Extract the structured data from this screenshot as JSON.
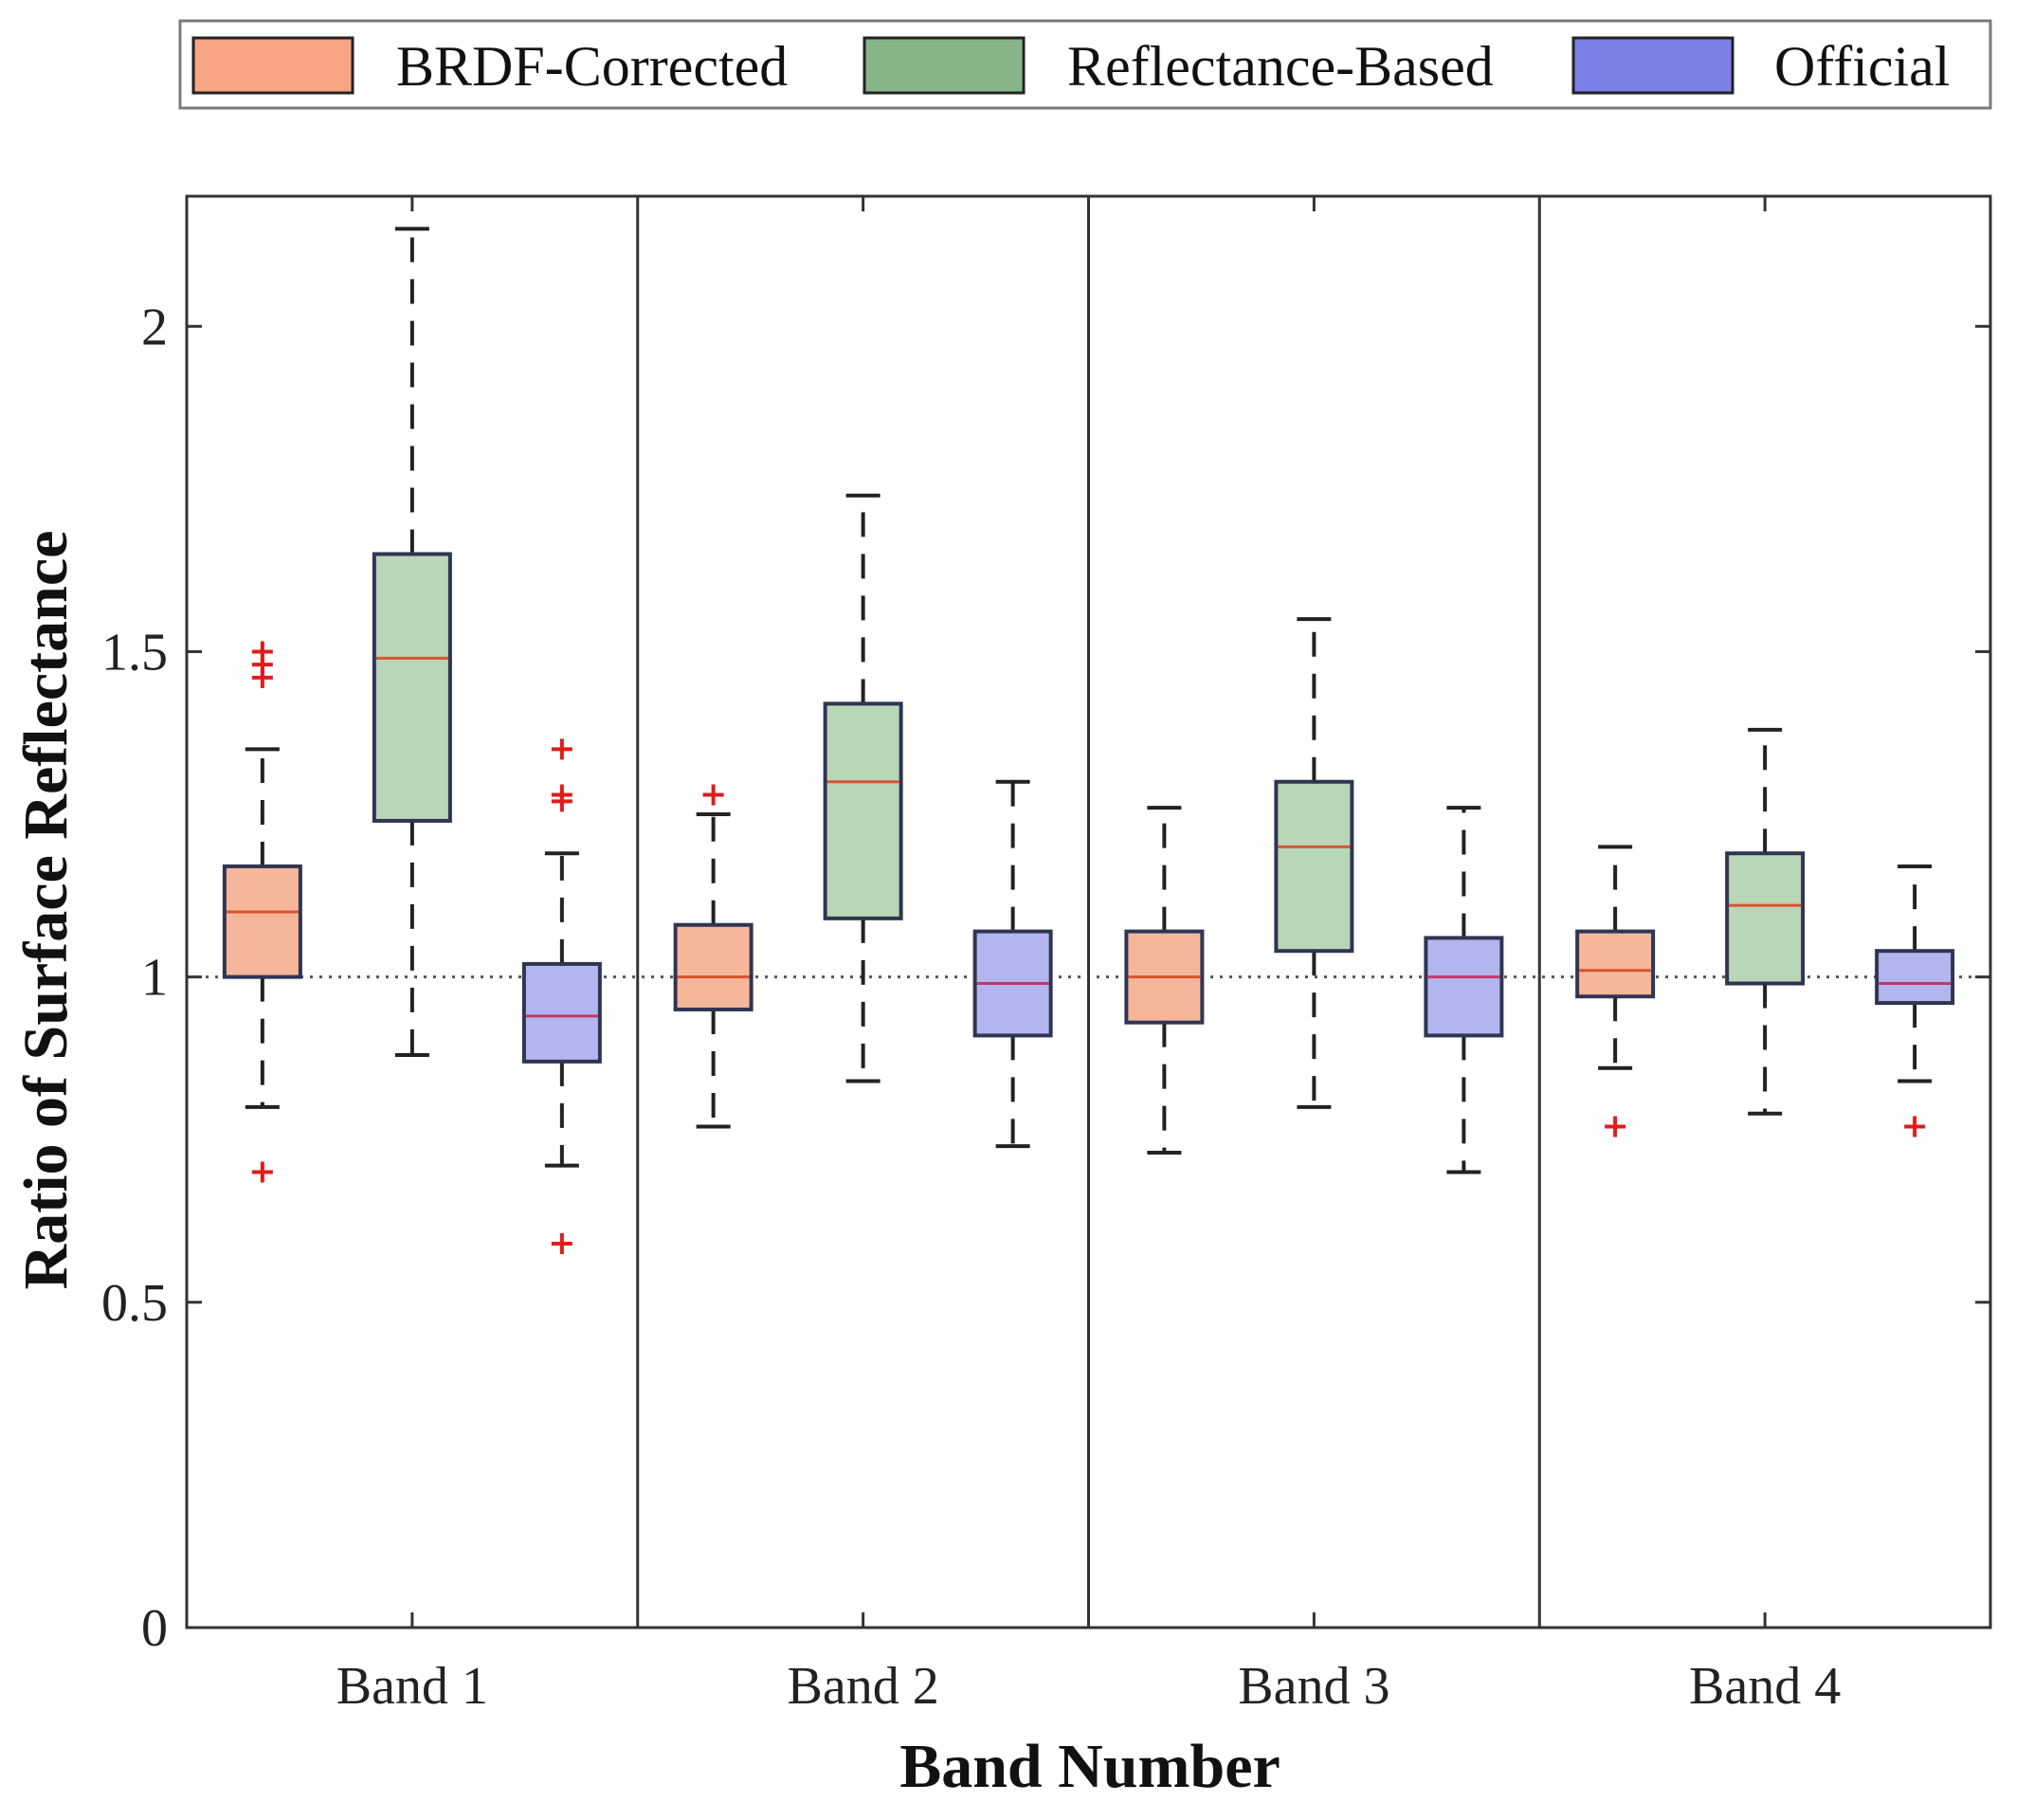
{
  "chart_data": {
    "type": "box",
    "title": "",
    "xlabel": "Band Number",
    "ylabel": "Ratio of Surface Reflectance",
    "ylim": [
      0,
      2.2
    ],
    "yticks": [
      0,
      0.5,
      1,
      1.5,
      2
    ],
    "ytick_labels": [
      "0",
      "0.5",
      "1",
      "1.5",
      "2"
    ],
    "reference_line": 1,
    "categories": [
      "Band 1",
      "Band 2",
      "Band 3",
      "Band 4"
    ],
    "legend": {
      "placement": "top",
      "entries": [
        "BRDF-Corrected",
        "Reflectance-Based",
        "Official"
      ]
    },
    "series": [
      {
        "name": "BRDF-Corrected",
        "color": "#f6b69a",
        "legend_color": "#f6a483",
        "median_color": "#d9542c",
        "boxes": [
          {
            "category": "Band 1",
            "whisker_low": 0.8,
            "q1": 1.0,
            "median": 1.1,
            "q3": 1.17,
            "whisker_high": 1.35,
            "outliers": [
              0.7,
              1.46,
              1.48,
              1.5
            ]
          },
          {
            "category": "Band 2",
            "whisker_low": 0.77,
            "q1": 0.95,
            "median": 1.0,
            "q3": 1.08,
            "whisker_high": 1.25,
            "outliers": [
              1.28
            ]
          },
          {
            "category": "Band 3",
            "whisker_low": 0.73,
            "q1": 0.93,
            "median": 1.0,
            "q3": 1.07,
            "whisker_high": 1.26,
            "outliers": []
          },
          {
            "category": "Band 4",
            "whisker_low": 0.86,
            "q1": 0.97,
            "median": 1.01,
            "q3": 1.07,
            "whisker_high": 1.2,
            "outliers": [
              0.77
            ]
          }
        ]
      },
      {
        "name": "Reflectance-Based",
        "color": "#b9d6b8",
        "legend_color": "#86b58a",
        "median_color": "#d9542c",
        "boxes": [
          {
            "category": "Band 1",
            "whisker_low": 0.88,
            "q1": 1.24,
            "median": 1.49,
            "q3": 1.65,
            "whisker_high": 2.15,
            "outliers": []
          },
          {
            "category": "Band 2",
            "whisker_low": 0.84,
            "q1": 1.09,
            "median": 1.3,
            "q3": 1.42,
            "whisker_high": 1.74,
            "outliers": []
          },
          {
            "category": "Band 3",
            "whisker_low": 0.8,
            "q1": 1.04,
            "median": 1.2,
            "q3": 1.3,
            "whisker_high": 1.55,
            "outliers": []
          },
          {
            "category": "Band 4",
            "whisker_low": 0.79,
            "q1": 0.99,
            "median": 1.11,
            "q3": 1.19,
            "whisker_high": 1.38,
            "outliers": []
          }
        ]
      },
      {
        "name": "Official",
        "color": "#b3b6ee",
        "legend_color": "#7b7fe6",
        "median_color": "#c2386a",
        "boxes": [
          {
            "category": "Band 1",
            "whisker_low": 0.71,
            "q1": 0.87,
            "median": 0.94,
            "q3": 1.02,
            "whisker_high": 1.19,
            "outliers": [
              0.59,
              1.27,
              1.28,
              1.35
            ]
          },
          {
            "category": "Band 2",
            "whisker_low": 0.74,
            "q1": 0.91,
            "median": 0.99,
            "q3": 1.07,
            "whisker_high": 1.3,
            "outliers": []
          },
          {
            "category": "Band 3",
            "whisker_low": 0.7,
            "q1": 0.91,
            "median": 1.0,
            "q3": 1.06,
            "whisker_high": 1.26,
            "outliers": []
          },
          {
            "category": "Band 4",
            "whisker_low": 0.84,
            "q1": 0.96,
            "median": 0.99,
            "q3": 1.04,
            "whisker_high": 1.17,
            "outliers": [
              0.77
            ]
          }
        ]
      }
    ]
  }
}
